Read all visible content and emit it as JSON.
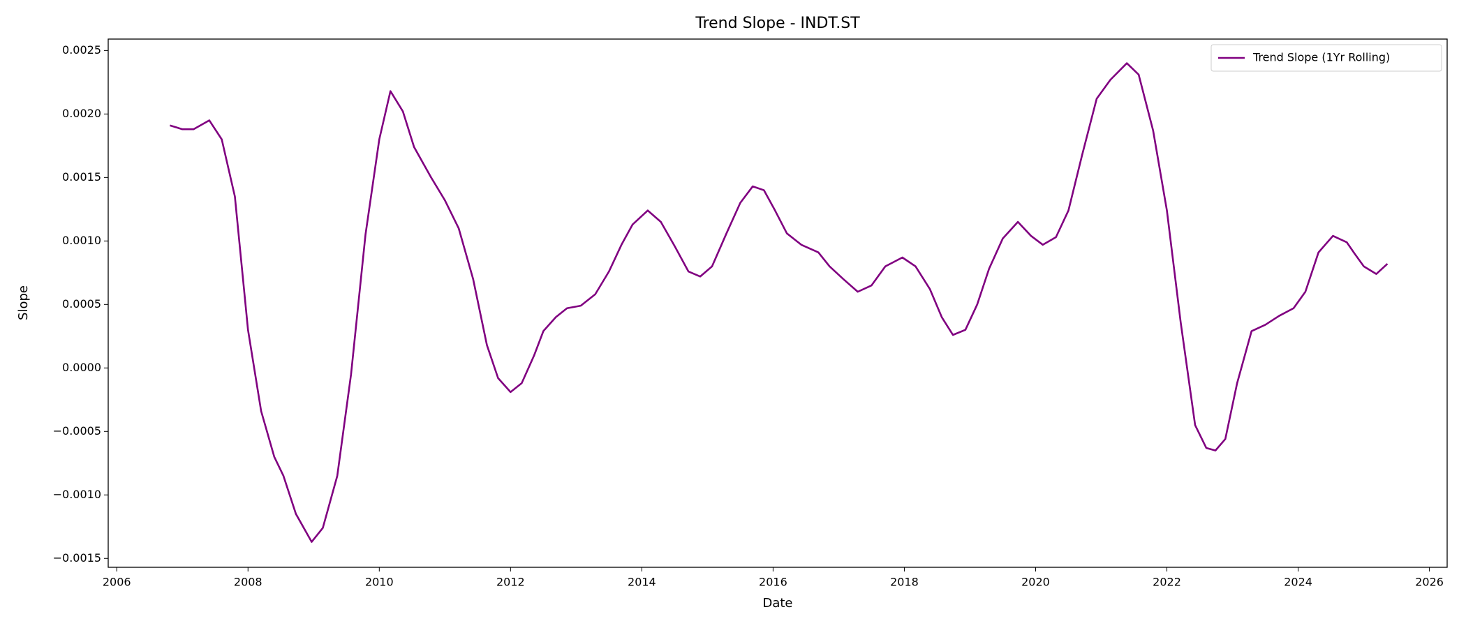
{
  "chart_data": {
    "type": "line",
    "title": "Trend Slope - INDT.ST",
    "x_label": "Date",
    "y_label": "Slope",
    "x": [
      2006.81,
      2007.0,
      2007.17,
      2007.41,
      2007.6,
      2007.8,
      2008.0,
      2008.2,
      2008.4,
      2008.54,
      2008.73,
      2008.97,
      2009.14,
      2009.36,
      2009.57,
      2009.79,
      2010.0,
      2010.17,
      2010.36,
      2010.53,
      2010.79,
      2011.0,
      2011.21,
      2011.43,
      2011.64,
      2011.81,
      2012.0,
      2012.17,
      2012.36,
      2012.5,
      2012.69,
      2012.86,
      2013.07,
      2013.29,
      2013.5,
      2013.69,
      2013.86,
      2014.09,
      2014.29,
      2014.5,
      2014.71,
      2014.89,
      2015.07,
      2015.29,
      2015.5,
      2015.69,
      2015.86,
      2016.03,
      2016.21,
      2016.43,
      2016.69,
      2016.86,
      2017.07,
      2017.29,
      2017.5,
      2017.71,
      2017.97,
      2018.17,
      2018.39,
      2018.57,
      2018.74,
      2018.93,
      2019.11,
      2019.29,
      2019.5,
      2019.73,
      2019.93,
      2020.11,
      2020.31,
      2020.5,
      2020.71,
      2020.93,
      2021.14,
      2021.39,
      2021.57,
      2021.79,
      2022.0,
      2022.21,
      2022.43,
      2022.6,
      2022.74,
      2022.89,
      2023.07,
      2023.29,
      2023.5,
      2023.71,
      2023.93,
      2024.11,
      2024.31,
      2024.53,
      2024.74,
      2024.86,
      2025.0,
      2025.19,
      2025.36
    ],
    "series": [
      {
        "name": "Trend Slope (1Yr Rolling)",
        "color": "#800080",
        "values": [
          0.00191,
          0.00188,
          0.00188,
          0.00195,
          0.0018,
          0.00135,
          0.0003,
          -0.00034,
          -0.0007,
          -0.00085,
          -0.00115,
          -0.00137,
          -0.00126,
          -0.00085,
          -5e-05,
          0.00105,
          0.0018,
          0.00218,
          0.00202,
          0.00174,
          0.0015,
          0.00132,
          0.0011,
          0.0007,
          0.00018,
          -8e-05,
          -0.00019,
          -0.00012,
          0.0001,
          0.00029,
          0.0004,
          0.00047,
          0.00049,
          0.00058,
          0.00076,
          0.00097,
          0.00113,
          0.00124,
          0.00115,
          0.00096,
          0.00076,
          0.00072,
          0.0008,
          0.00106,
          0.0013,
          0.00143,
          0.0014,
          0.00124,
          0.00106,
          0.00097,
          0.00091,
          0.0008,
          0.0007,
          0.0006,
          0.00065,
          0.0008,
          0.00087,
          0.0008,
          0.00062,
          0.0004,
          0.00026,
          0.0003,
          0.0005,
          0.00078,
          0.00102,
          0.00115,
          0.00104,
          0.00097,
          0.00103,
          0.00124,
          0.00168,
          0.00212,
          0.00227,
          0.0024,
          0.00231,
          0.00187,
          0.00124,
          0.00036,
          -0.00045,
          -0.00063,
          -0.00065,
          -0.00056,
          -0.00012,
          0.00029,
          0.00034,
          0.00041,
          0.00047,
          0.0006,
          0.00091,
          0.00104,
          0.00099,
          0.0009,
          0.0008,
          0.00074,
          0.00082
        ]
      }
    ],
    "xlim": [
      2005.87,
      2026.27
    ],
    "xticks": [
      2006,
      2008,
      2010,
      2012,
      2014,
      2016,
      2018,
      2020,
      2022,
      2024,
      2026
    ],
    "ylim": [
      -0.00157,
      0.00259
    ],
    "yticks": [
      {
        "value": -0.0015,
        "label": "−0.0015"
      },
      {
        "value": -0.001,
        "label": "−0.0010"
      },
      {
        "value": -0.0005,
        "label": "−0.0005"
      },
      {
        "value": 0,
        "label": "0.0000"
      },
      0.0005,
      {
        "value": 0.001,
        "label": "0.0010"
      },
      0.0015,
      {
        "value": 0.002,
        "label": "0.0020"
      },
      0.0025
    ],
    "grid": false,
    "legend": "upper-right"
  }
}
